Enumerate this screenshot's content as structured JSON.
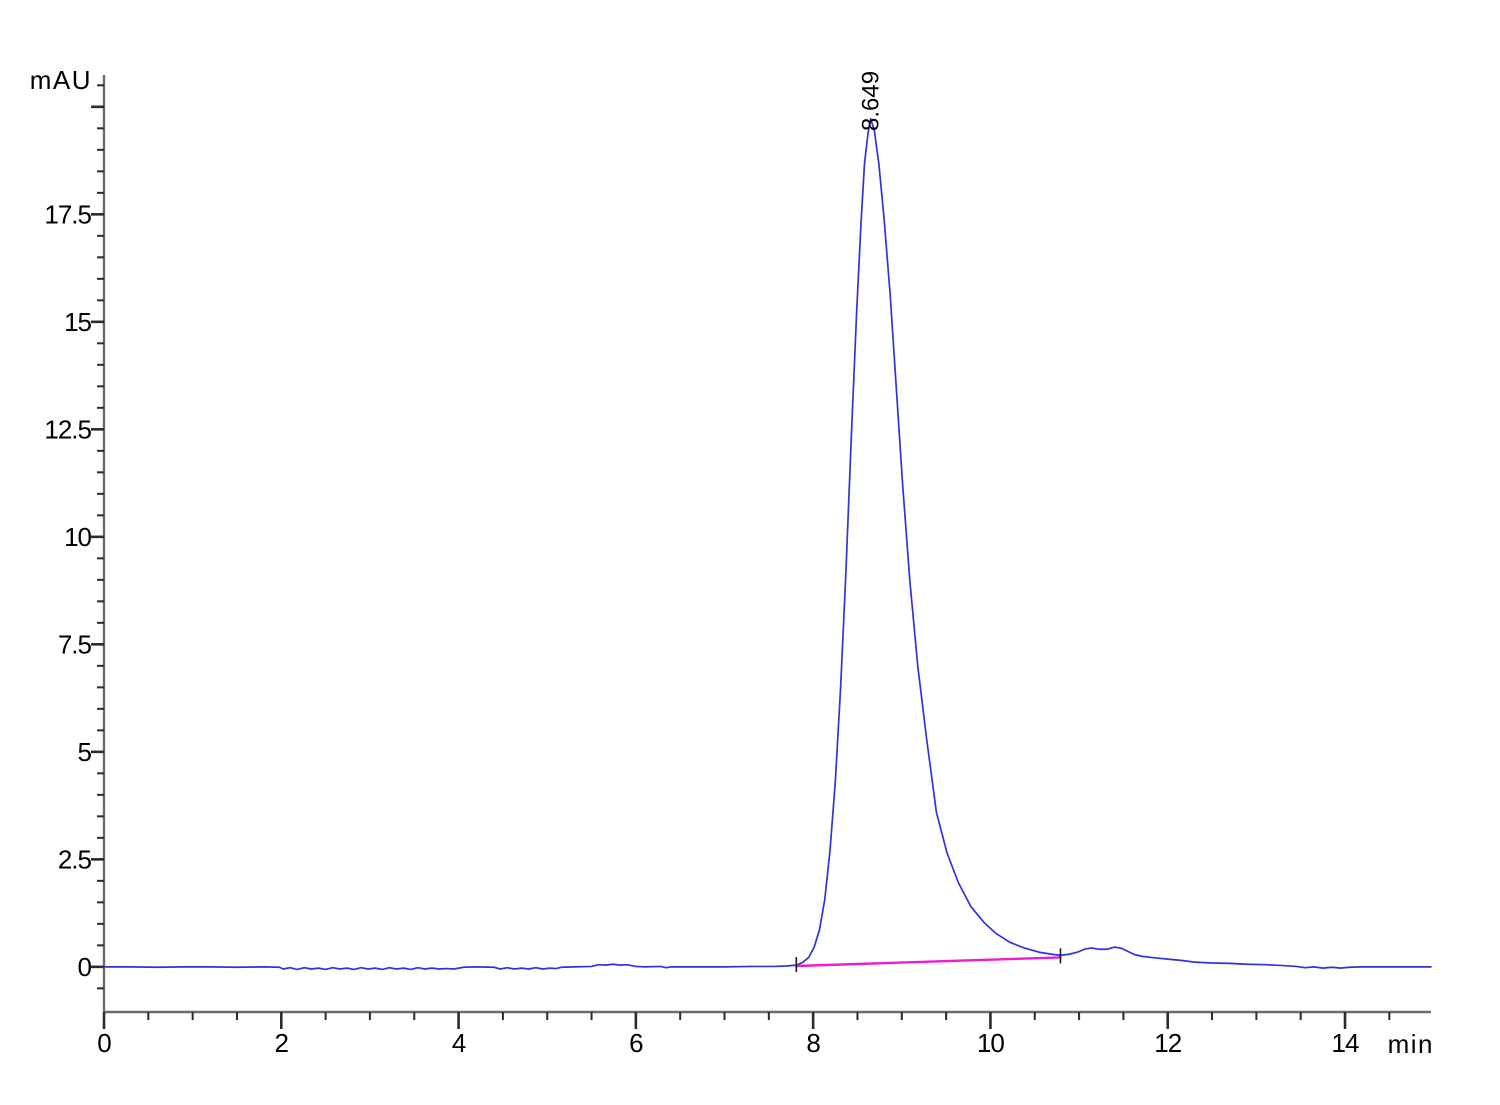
{
  "chart_data": {
    "type": "line",
    "title": "",
    "ylabel": "mAU",
    "xlabel": "min",
    "xlim": [
      0,
      14.97
    ],
    "ylim": [
      -1.05,
      20.74
    ],
    "grid": false,
    "x_axis": {
      "major_ticks": [
        0,
        2,
        4,
        6,
        8,
        10,
        12,
        14
      ],
      "minor_step": 0.5,
      "minor_min": 0.5,
      "minor_max": 14.5
    },
    "y_axis": {
      "major_step": 2.5,
      "major_min": 0,
      "major_max": 20,
      "labeled_ticks": [
        0,
        2.5,
        5,
        7.5,
        10,
        12.5,
        15,
        17.5
      ],
      "minor_step": 0.5,
      "minor_min": -0.5,
      "minor_max": 20.5
    },
    "colors": {
      "trace": "#3232dc",
      "baseline": "#ee1bd0",
      "axis": "#6b6b6b",
      "tick": "#2b2b2b",
      "marker": "#1a1a1a",
      "label": "#000000"
    },
    "series": [
      {
        "name": "detector-signal",
        "points": [
          [
            0.0,
            0.0
          ],
          [
            0.3,
            0.0
          ],
          [
            0.6,
            -0.01
          ],
          [
            0.9,
            0.0
          ],
          [
            1.2,
            0.0
          ],
          [
            1.5,
            -0.01
          ],
          [
            1.8,
            0.0
          ],
          [
            1.98,
            -0.01
          ],
          [
            2.02,
            -0.05
          ],
          [
            2.1,
            -0.02
          ],
          [
            2.18,
            -0.06
          ],
          [
            2.26,
            -0.02
          ],
          [
            2.34,
            -0.05
          ],
          [
            2.42,
            -0.03
          ],
          [
            2.5,
            -0.06
          ],
          [
            2.58,
            -0.02
          ],
          [
            2.66,
            -0.05
          ],
          [
            2.74,
            -0.03
          ],
          [
            2.82,
            -0.06
          ],
          [
            2.9,
            -0.02
          ],
          [
            2.98,
            -0.05
          ],
          [
            3.06,
            -0.03
          ],
          [
            3.14,
            -0.06
          ],
          [
            3.22,
            -0.02
          ],
          [
            3.3,
            -0.05
          ],
          [
            3.38,
            -0.03
          ],
          [
            3.46,
            -0.06
          ],
          [
            3.54,
            -0.02
          ],
          [
            3.62,
            -0.05
          ],
          [
            3.7,
            -0.03
          ],
          [
            3.78,
            -0.05
          ],
          [
            3.86,
            -0.04
          ],
          [
            3.95,
            -0.05
          ],
          [
            4.05,
            -0.01
          ],
          [
            4.2,
            0.0
          ],
          [
            4.4,
            -0.01
          ],
          [
            4.47,
            -0.05
          ],
          [
            4.55,
            -0.02
          ],
          [
            4.63,
            -0.05
          ],
          [
            4.71,
            -0.03
          ],
          [
            4.79,
            -0.05
          ],
          [
            4.87,
            -0.02
          ],
          [
            4.95,
            -0.05
          ],
          [
            5.03,
            -0.03
          ],
          [
            5.1,
            -0.04
          ],
          [
            5.16,
            -0.01
          ],
          [
            5.3,
            0.0
          ],
          [
            5.5,
            0.01
          ],
          [
            5.58,
            0.05
          ],
          [
            5.66,
            0.04
          ],
          [
            5.74,
            0.06
          ],
          [
            5.82,
            0.04
          ],
          [
            5.9,
            0.05
          ],
          [
            6.0,
            0.01
          ],
          [
            6.1,
            0.0
          ],
          [
            6.28,
            0.01
          ],
          [
            6.34,
            -0.02
          ],
          [
            6.4,
            0.0
          ],
          [
            6.7,
            0.0
          ],
          [
            7.0,
            0.0
          ],
          [
            7.3,
            0.01
          ],
          [
            7.55,
            0.01
          ],
          [
            7.7,
            0.02
          ],
          [
            7.81,
            0.04
          ],
          [
            7.88,
            0.1
          ],
          [
            7.95,
            0.22
          ],
          [
            8.01,
            0.45
          ],
          [
            8.07,
            0.85
          ],
          [
            8.13,
            1.55
          ],
          [
            8.19,
            2.7
          ],
          [
            8.25,
            4.3
          ],
          [
            8.31,
            6.5
          ],
          [
            8.37,
            9.2
          ],
          [
            8.43,
            12.3
          ],
          [
            8.49,
            15.2
          ],
          [
            8.54,
            17.3
          ],
          [
            8.58,
            18.7
          ],
          [
            8.62,
            19.4
          ],
          [
            8.649,
            19.72
          ],
          [
            8.69,
            19.45
          ],
          [
            8.74,
            18.7
          ],
          [
            8.8,
            17.4
          ],
          [
            8.87,
            15.6
          ],
          [
            8.94,
            13.4
          ],
          [
            9.01,
            11.2
          ],
          [
            9.09,
            9.0
          ],
          [
            9.18,
            7.0
          ],
          [
            9.28,
            5.3
          ],
          [
            9.39,
            3.6
          ],
          [
            9.51,
            2.65
          ],
          [
            9.64,
            1.95
          ],
          [
            9.78,
            1.4
          ],
          [
            9.92,
            1.05
          ],
          [
            10.06,
            0.78
          ],
          [
            10.22,
            0.57
          ],
          [
            10.38,
            0.44
          ],
          [
            10.55,
            0.34
          ],
          [
            10.7,
            0.29
          ],
          [
            10.79,
            0.27
          ],
          [
            10.88,
            0.29
          ],
          [
            10.98,
            0.34
          ],
          [
            11.06,
            0.41
          ],
          [
            11.14,
            0.44
          ],
          [
            11.22,
            0.41
          ],
          [
            11.32,
            0.41
          ],
          [
            11.4,
            0.46
          ],
          [
            11.48,
            0.43
          ],
          [
            11.55,
            0.36
          ],
          [
            11.62,
            0.29
          ],
          [
            11.72,
            0.24
          ],
          [
            11.85,
            0.21
          ],
          [
            12.0,
            0.18
          ],
          [
            12.15,
            0.15
          ],
          [
            12.3,
            0.11
          ],
          [
            12.5,
            0.09
          ],
          [
            12.7,
            0.08
          ],
          [
            12.9,
            0.06
          ],
          [
            13.1,
            0.05
          ],
          [
            13.3,
            0.03
          ],
          [
            13.45,
            0.01
          ],
          [
            13.55,
            -0.02
          ],
          [
            13.65,
            0.0
          ],
          [
            13.75,
            -0.03
          ],
          [
            13.85,
            -0.01
          ],
          [
            13.95,
            -0.03
          ],
          [
            14.05,
            -0.01
          ],
          [
            14.2,
            0.0
          ],
          [
            14.5,
            0.0
          ],
          [
            14.97,
            0.0
          ]
        ]
      }
    ],
    "integration_baseline": {
      "from": [
        7.81,
        0.02
      ],
      "to": [
        10.79,
        0.22
      ]
    },
    "integration_markers": {
      "times": [
        7.81,
        10.79
      ]
    },
    "peaks": [
      {
        "label": "8.649",
        "retention_time": 8.649,
        "height_mAU": 19.7
      }
    ]
  }
}
